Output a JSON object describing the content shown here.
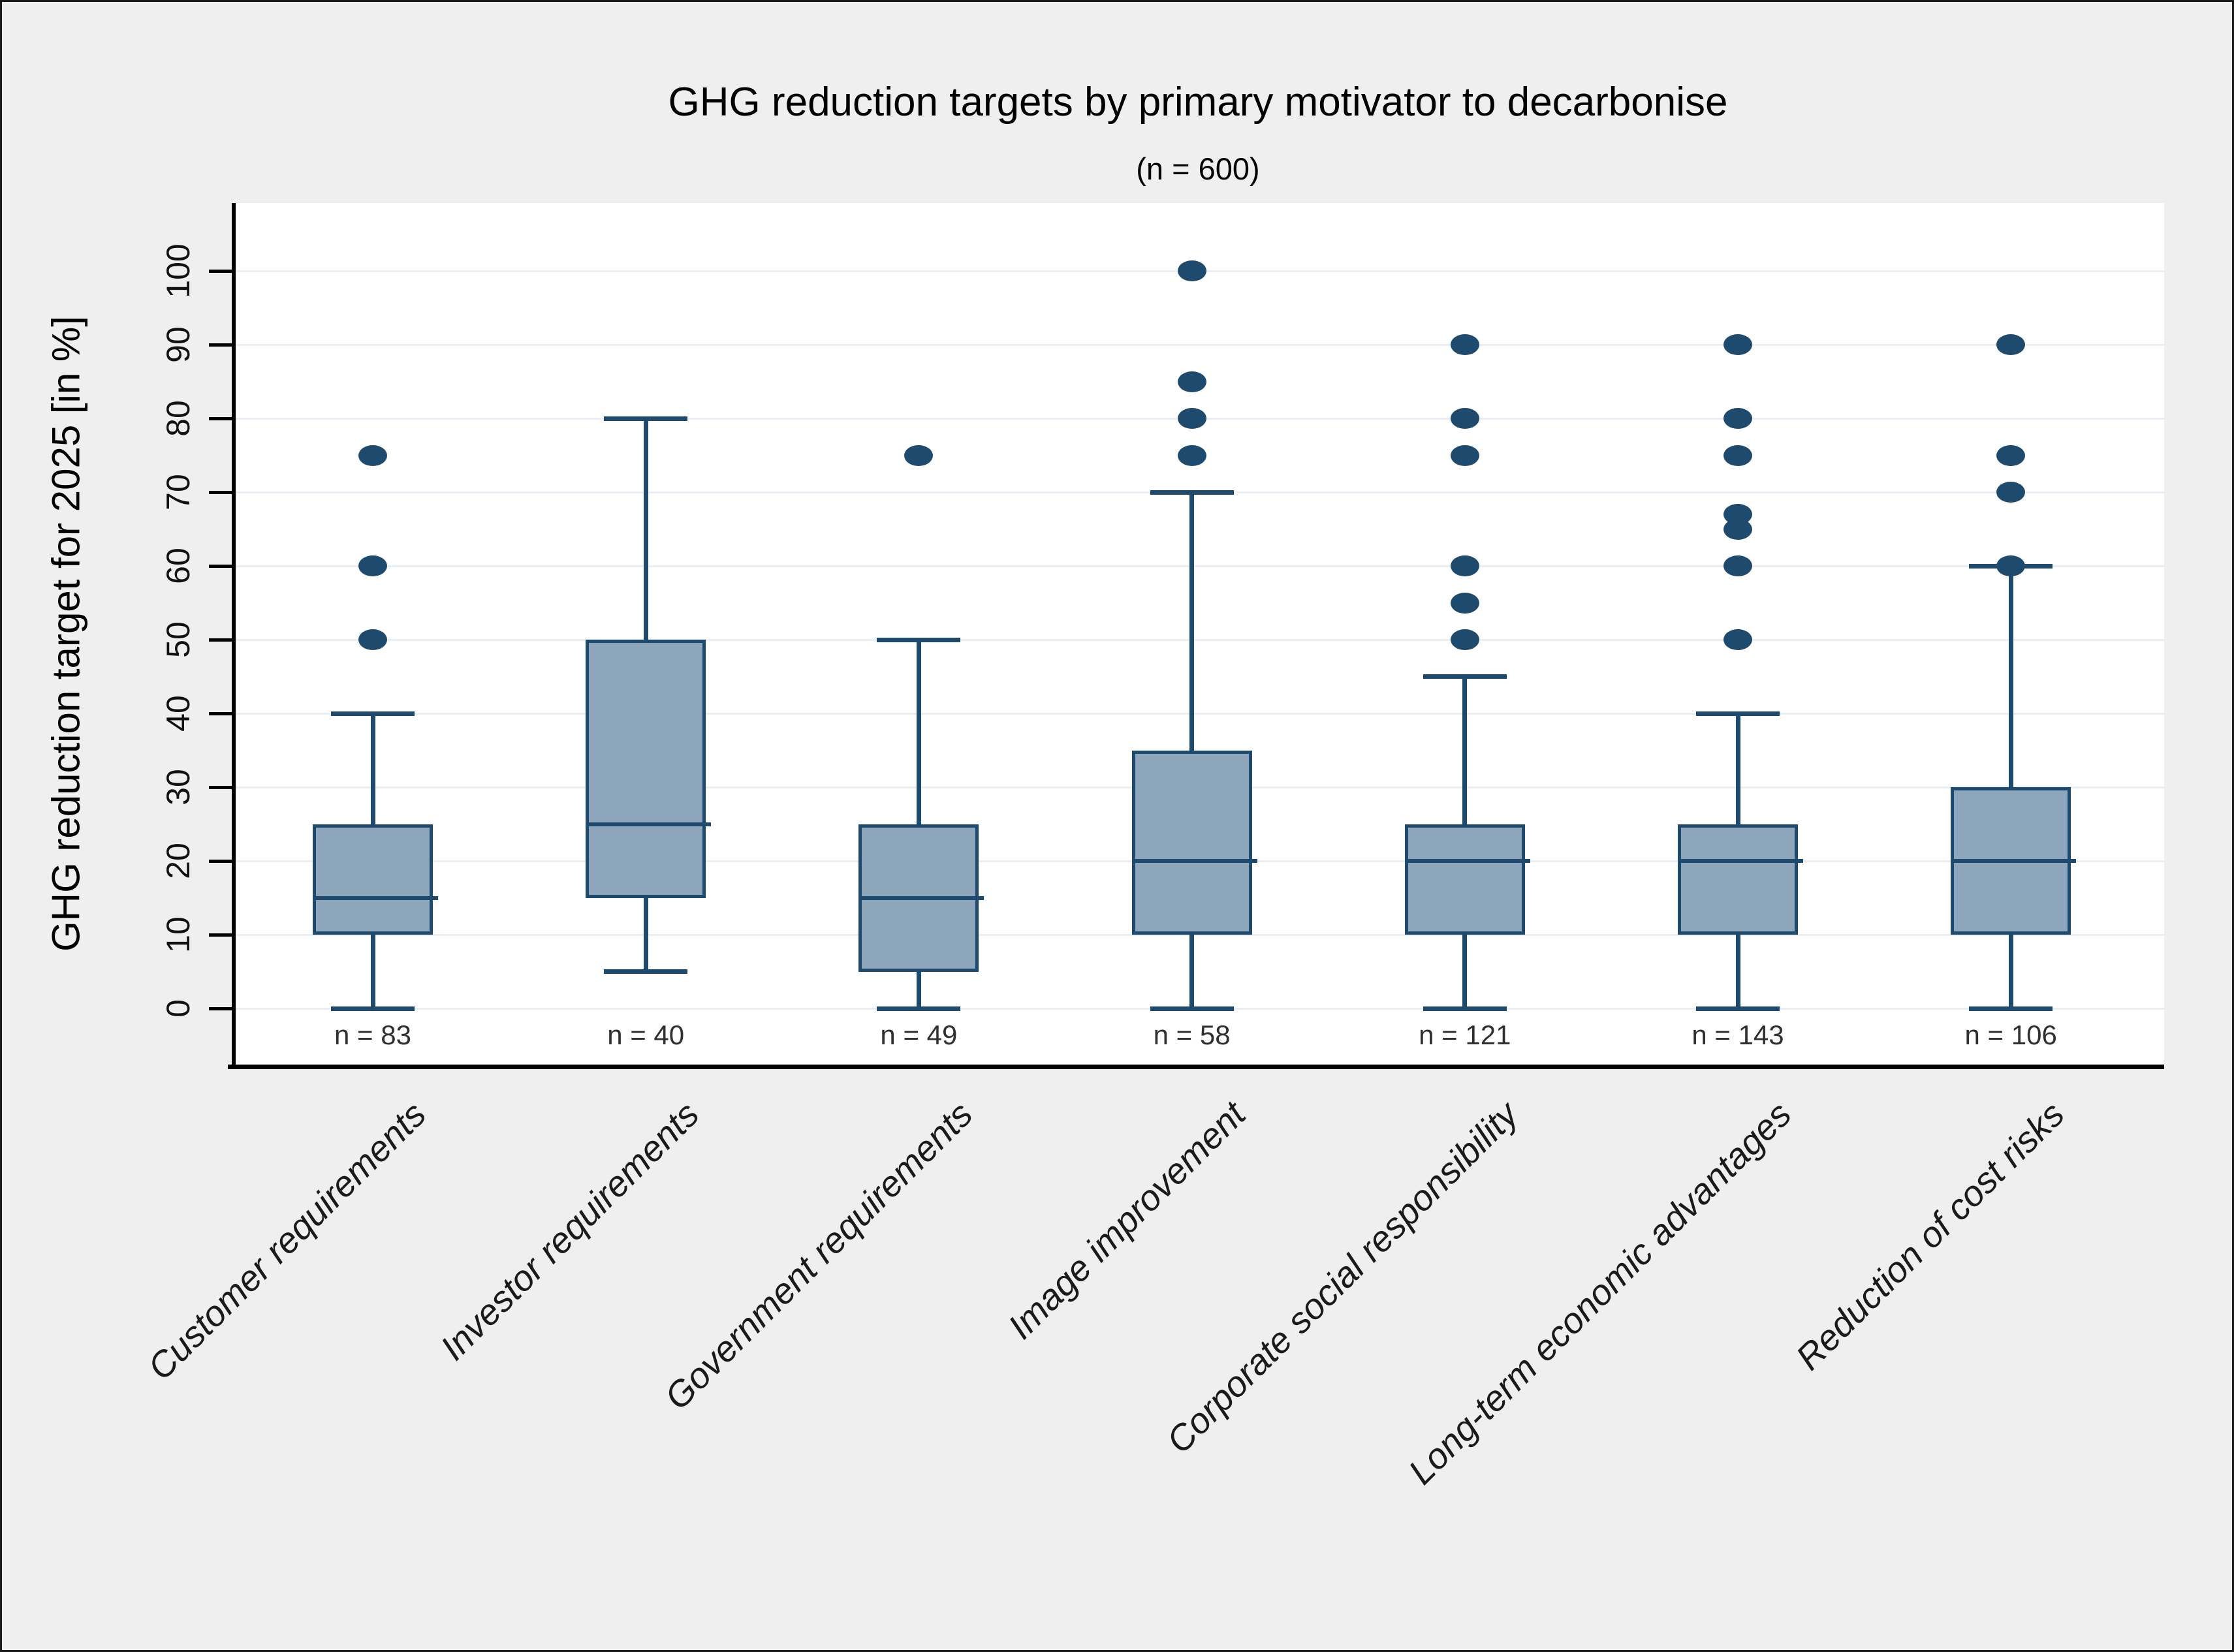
{
  "chart_data": {
    "type": "box",
    "title": "GHG reduction targets by primary motivator to decarbonise",
    "subtitle": "(n = 600)",
    "ylabel": "GHG reduction target for 2025 [in %]",
    "ylim": [
      0,
      100
    ],
    "yticks": [
      0,
      10,
      20,
      30,
      40,
      50,
      60,
      70,
      80,
      90,
      100
    ],
    "grid": "horizontal-light",
    "legend": "none",
    "categories": [
      "Customer requirements",
      "Investor requirements",
      "Government requirements",
      "Image improvement",
      "Corporate social responsibility",
      "Long-term economic advantages",
      "Reduction of cost risks"
    ],
    "series": [
      {
        "name": "Customer requirements",
        "n_label": "n = 83",
        "n": 83,
        "whisker_low": 0,
        "q1": 10,
        "median": 15,
        "q3": 25,
        "whisker_high": 40,
        "outliers": [
          50,
          60,
          75
        ]
      },
      {
        "name": "Investor requirements",
        "n_label": "n = 40",
        "n": 40,
        "whisker_low": 5,
        "q1": 15,
        "median": 25,
        "q3": 50,
        "whisker_high": 80,
        "outliers": []
      },
      {
        "name": "Government requirements",
        "n_label": "n = 49",
        "n": 49,
        "whisker_low": 0,
        "q1": 5,
        "median": 15,
        "q3": 25,
        "whisker_high": 50,
        "outliers": [
          75
        ]
      },
      {
        "name": "Image improvement",
        "n_label": "n = 58",
        "n": 58,
        "whisker_low": 0,
        "q1": 10,
        "median": 20,
        "q3": 35,
        "whisker_high": 70,
        "outliers": [
          75,
          80,
          85,
          100
        ]
      },
      {
        "name": "Corporate social responsibility",
        "n_label": "n = 121",
        "n": 121,
        "whisker_low": 0,
        "q1": 10,
        "median": 20,
        "q3": 25,
        "whisker_high": 45,
        "outliers": [
          50,
          55,
          60,
          75,
          80,
          90
        ]
      },
      {
        "name": "Long-term economic advantages",
        "n_label": "n = 143",
        "n": 143,
        "whisker_low": 0,
        "q1": 10,
        "median": 20,
        "q3": 25,
        "whisker_high": 40,
        "outliers": [
          50,
          60,
          65,
          67,
          75,
          80,
          90
        ]
      },
      {
        "name": "Reduction of cost risks",
        "n_label": "n = 106",
        "n": 106,
        "whisker_low": 0,
        "q1": 10,
        "median": 20,
        "q3": 30,
        "whisker_high": 60,
        "outliers": [
          60,
          70,
          75,
          90
        ]
      }
    ],
    "colors": {
      "box_fill": "#8ea6bc",
      "box_border": "#1e4a6e",
      "whisker": "#1e4a6e",
      "outlier": "#1e4a6e",
      "gridline": "#e8eef3",
      "axis": "#000000",
      "background": "#efefef",
      "plot_background": "#ffffff",
      "n_label": "#303030",
      "text": "#000000"
    }
  }
}
